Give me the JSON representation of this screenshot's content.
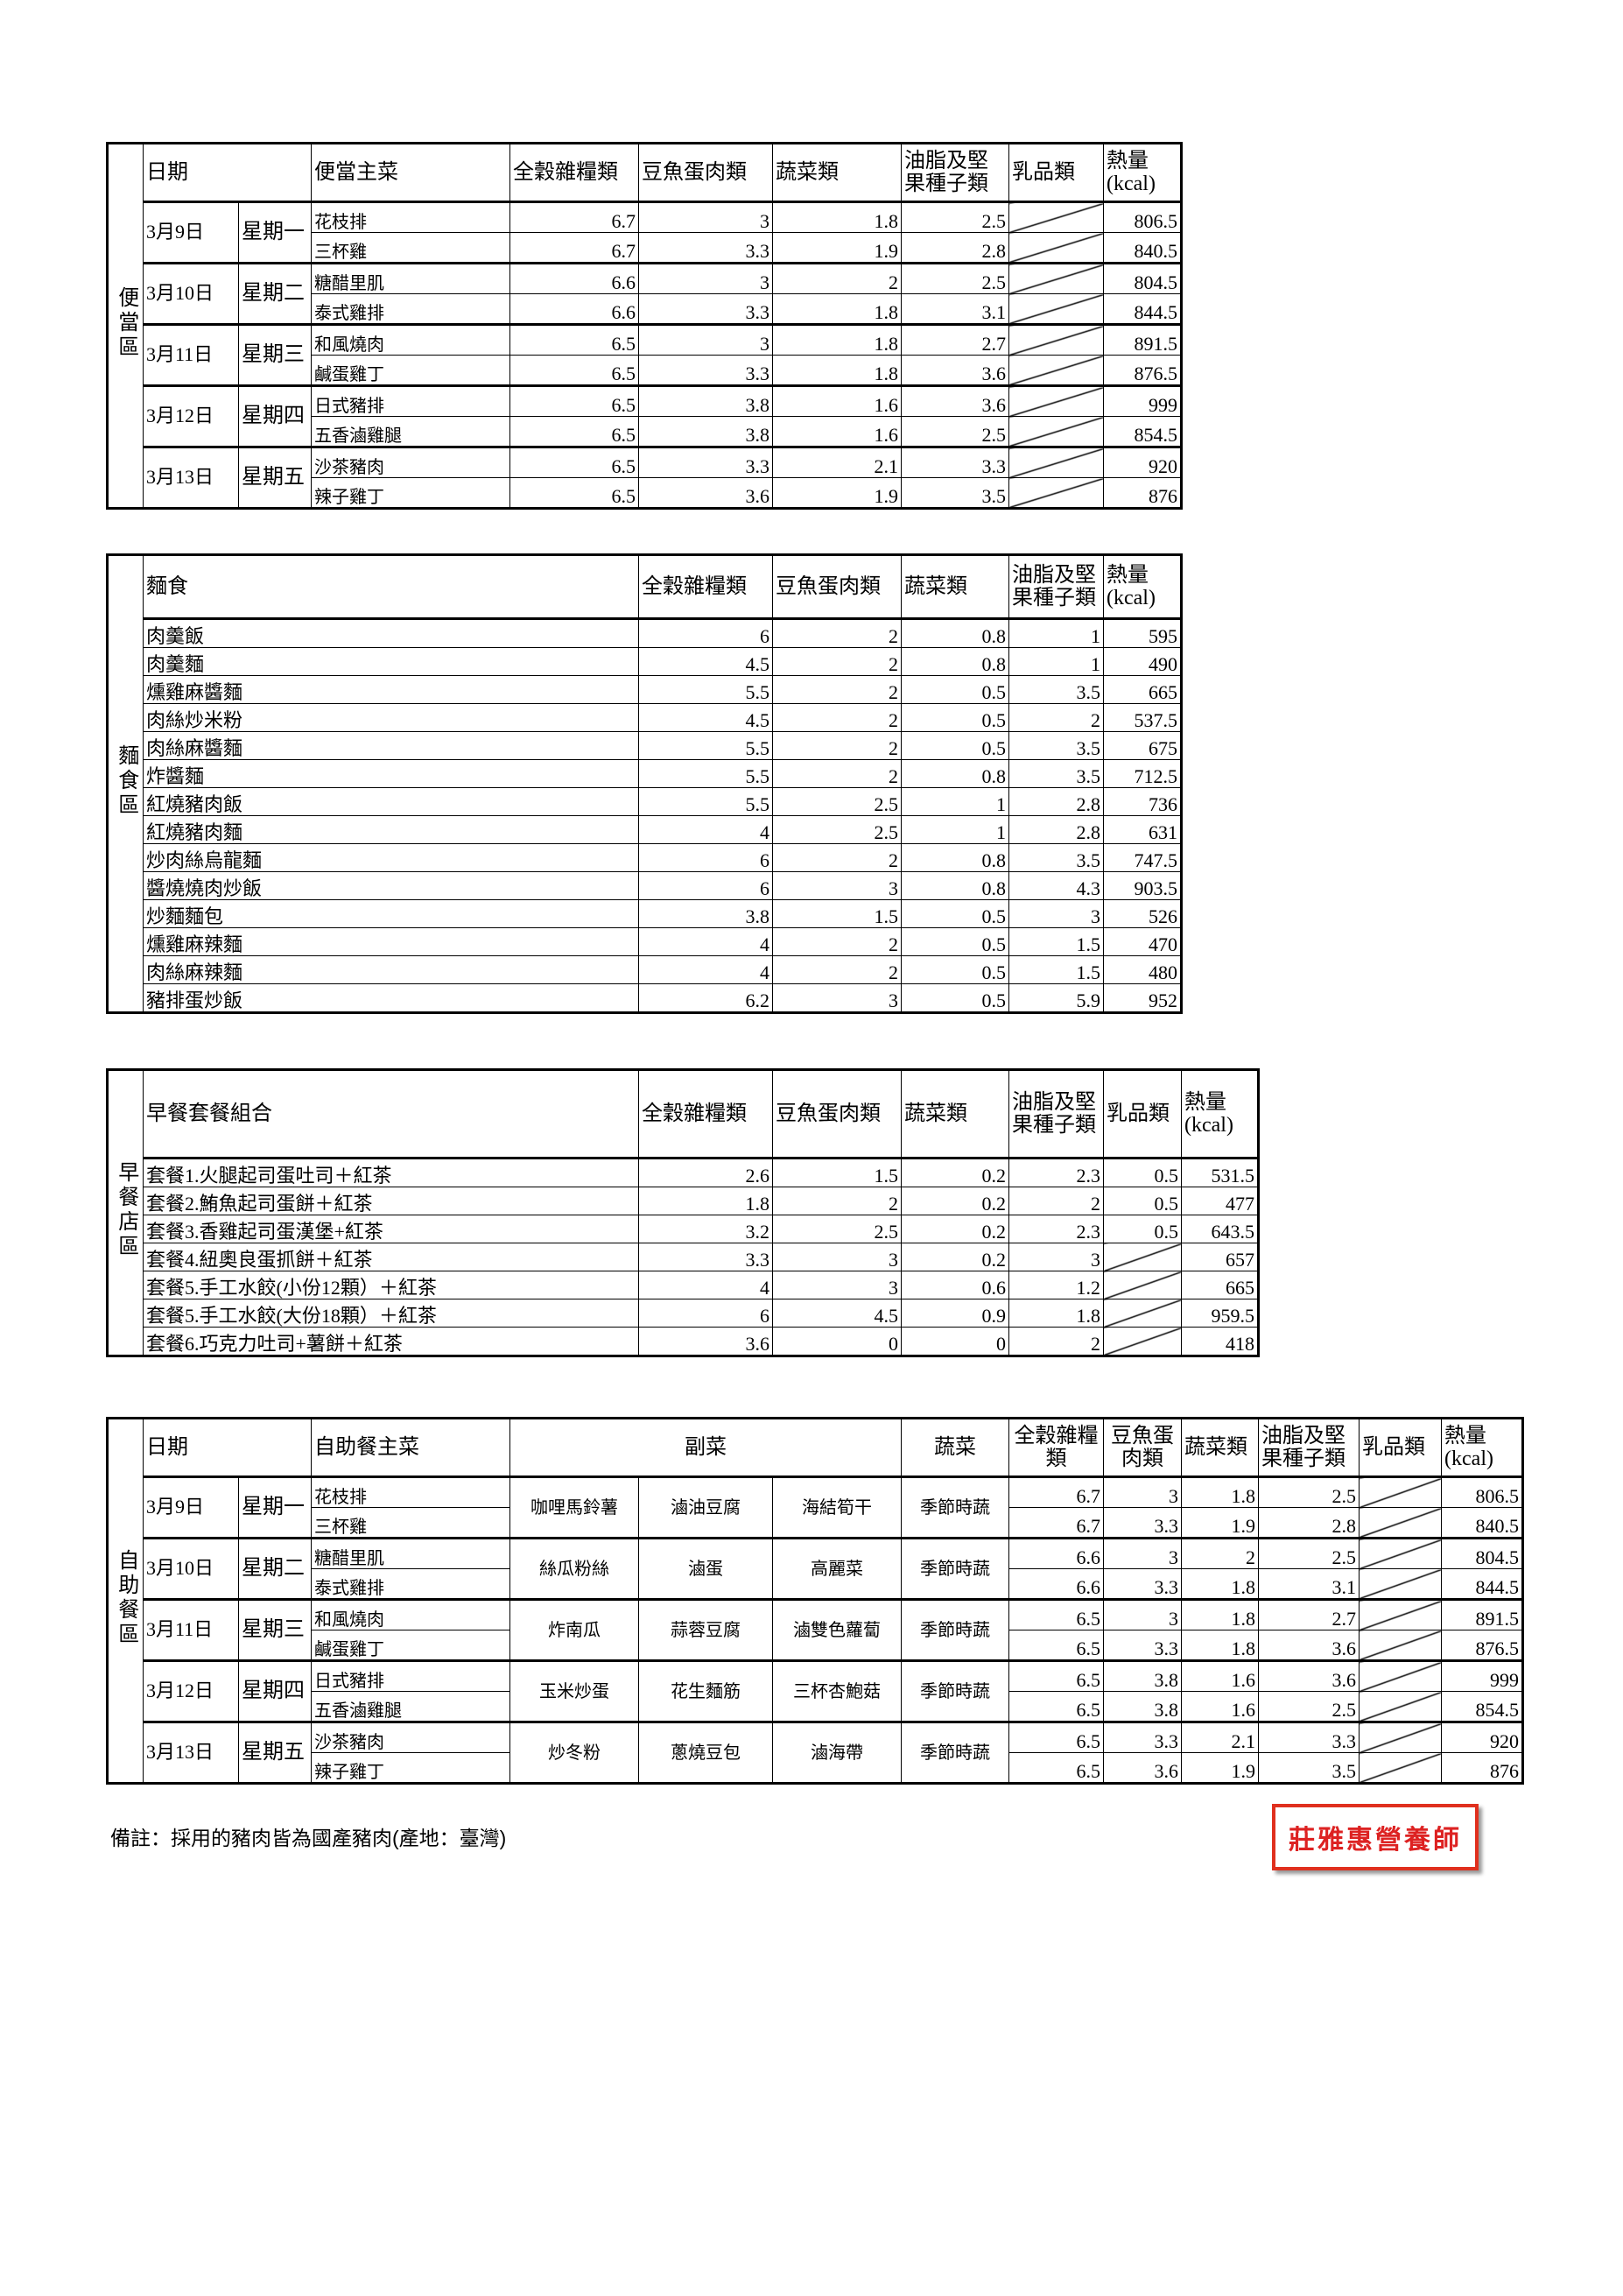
{
  "bento": {
    "section_label": "便當區",
    "headers": {
      "date": "日期",
      "main": "便當主菜",
      "grains": "全穀雜糧類",
      "protein": "豆魚蛋肉類",
      "veg": "蔬菜類",
      "oil": "油脂及堅果種子類",
      "dairy": "乳品類",
      "kcal": "熱量(kcal)"
    },
    "days": [
      {
        "date": "3月9日",
        "weekday": "星期一",
        "items": [
          [
            "花枝排",
            "6.7",
            "3",
            "1.8",
            "2.5",
            null,
            "806.5"
          ],
          [
            "三杯雞",
            "6.7",
            "3.3",
            "1.9",
            "2.8",
            null,
            "840.5"
          ]
        ]
      },
      {
        "date": "3月10日",
        "weekday": "星期二",
        "items": [
          [
            "糖醋里肌",
            "6.6",
            "3",
            "2",
            "2.5",
            null,
            "804.5"
          ],
          [
            "泰式雞排",
            "6.6",
            "3.3",
            "1.8",
            "3.1",
            null,
            "844.5"
          ]
        ]
      },
      {
        "date": "3月11日",
        "weekday": "星期三",
        "items": [
          [
            "和風燒肉",
            "6.5",
            "3",
            "1.8",
            "2.7",
            null,
            "891.5"
          ],
          [
            "鹹蛋雞丁",
            "6.5",
            "3.3",
            "1.8",
            "3.6",
            null,
            "876.5"
          ]
        ]
      },
      {
        "date": "3月12日",
        "weekday": "星期四",
        "items": [
          [
            "日式豬排",
            "6.5",
            "3.8",
            "1.6",
            "3.6",
            null,
            "999"
          ],
          [
            "五香滷雞腿",
            "6.5",
            "3.8",
            "1.6",
            "2.5",
            null,
            "854.5"
          ]
        ]
      },
      {
        "date": "3月13日",
        "weekday": "星期五",
        "items": [
          [
            "沙茶豬肉",
            "6.5",
            "3.3",
            "2.1",
            "3.3",
            null,
            "920"
          ],
          [
            "辣子雞丁",
            "6.5",
            "3.6",
            "1.9",
            "3.5",
            null,
            "876"
          ]
        ]
      }
    ]
  },
  "noodle": {
    "section_label": "麵食區",
    "headers": {
      "main": "麵食",
      "grains": "全穀雜糧類",
      "protein": "豆魚蛋肉類",
      "veg": "蔬菜類",
      "oil": "油脂及堅果種子類",
      "kcal": "熱量(kcal)"
    },
    "rows": [
      [
        "肉羹飯",
        "6",
        "2",
        "0.8",
        "1",
        "595"
      ],
      [
        "肉羹麵",
        "4.5",
        "2",
        "0.8",
        "1",
        "490"
      ],
      [
        "燻雞麻醬麵",
        "5.5",
        "2",
        "0.5",
        "3.5",
        "665"
      ],
      [
        "肉絲炒米粉",
        "4.5",
        "2",
        "0.5",
        "2",
        "537.5"
      ],
      [
        "肉絲麻醬麵",
        "5.5",
        "2",
        "0.5",
        "3.5",
        "675"
      ],
      [
        "炸醬麵",
        "5.5",
        "2",
        "0.8",
        "3.5",
        "712.5"
      ],
      [
        "紅燒豬肉飯",
        "5.5",
        "2.5",
        "1",
        "2.8",
        "736"
      ],
      [
        "紅燒豬肉麵",
        "4",
        "2.5",
        "1",
        "2.8",
        "631"
      ],
      [
        "炒肉絲烏龍麵",
        "6",
        "2",
        "0.8",
        "3.5",
        "747.5"
      ],
      [
        "醬燒燒肉炒飯",
        "6",
        "3",
        "0.8",
        "4.3",
        "903.5"
      ],
      [
        "炒麵麵包",
        "3.8",
        "1.5",
        "0.5",
        "3",
        "526"
      ],
      [
        "燻雞麻辣麵",
        "4",
        "2",
        "0.5",
        "1.5",
        "470"
      ],
      [
        "肉絲麻辣麵",
        "4",
        "2",
        "0.5",
        "1.5",
        "480"
      ],
      [
        "豬排蛋炒飯",
        "6.2",
        "3",
        "0.5",
        "5.9",
        "952"
      ]
    ]
  },
  "breakfast": {
    "section_label": "早餐店區",
    "headers": {
      "main": "早餐套餐組合",
      "grains": "全穀雜糧類",
      "protein": "豆魚蛋肉類",
      "veg": "蔬菜類",
      "oil": "油脂及堅果種子類",
      "dairy": "乳品類",
      "kcal": "熱量(kcal)"
    },
    "rows": [
      [
        "套餐1.火腿起司蛋吐司＋紅茶",
        "2.6",
        "1.5",
        "0.2",
        "2.3",
        "0.5",
        "531.5"
      ],
      [
        "套餐2.鮪魚起司蛋餅＋紅茶",
        "1.8",
        "2",
        "0.2",
        "2",
        "0.5",
        "477"
      ],
      [
        "套餐3.香雞起司蛋漢堡+紅茶",
        "3.2",
        "2.5",
        "0.2",
        "2.3",
        "0.5",
        "643.5"
      ],
      [
        "套餐4.紐奧良蛋抓餅＋紅茶",
        "3.3",
        "3",
        "0.2",
        "3",
        null,
        "657"
      ],
      [
        "套餐5.手工水餃(小份12顆）＋紅茶",
        "4",
        "3",
        "0.6",
        "1.2",
        null,
        "665"
      ],
      [
        "套餐5.手工水餃(大份18顆）＋紅茶",
        "6",
        "4.5",
        "0.9",
        "1.8",
        null,
        "959.5"
      ],
      [
        "套餐6.巧克力吐司+薯餅＋紅茶",
        "3.6",
        "0",
        "0",
        "2",
        null,
        "418"
      ]
    ]
  },
  "buffet": {
    "section_label": "自助餐區",
    "headers": {
      "date": "日期",
      "main": "自助餐主菜",
      "sides": "副菜",
      "vegdish": "蔬菜",
      "grains": "全穀雜糧類",
      "protein": "豆魚蛋肉類",
      "veg": "蔬菜類",
      "oil": "油脂及堅果種子類",
      "dairy": "乳品類",
      "kcal": "熱量(kcal)"
    },
    "days": [
      {
        "date": "3月9日",
        "weekday": "星期一",
        "sides": [
          "咖哩馬鈴薯",
          "滷油豆腐",
          "海結筍干"
        ],
        "vegdish": "季節時蔬",
        "items": [
          [
            "花枝排",
            "6.7",
            "3",
            "1.8",
            "2.5",
            null,
            "806.5"
          ],
          [
            "三杯雞",
            "6.7",
            "3.3",
            "1.9",
            "2.8",
            null,
            "840.5"
          ]
        ]
      },
      {
        "date": "3月10日",
        "weekday": "星期二",
        "sides": [
          "絲瓜粉絲",
          "滷蛋",
          "高麗菜"
        ],
        "vegdish": "季節時蔬",
        "items": [
          [
            "糖醋里肌",
            "6.6",
            "3",
            "2",
            "2.5",
            null,
            "804.5"
          ],
          [
            "泰式雞排",
            "6.6",
            "3.3",
            "1.8",
            "3.1",
            null,
            "844.5"
          ]
        ]
      },
      {
        "date": "3月11日",
        "weekday": "星期三",
        "sides": [
          "炸南瓜",
          "蒜蓉豆腐",
          "滷雙色蘿蔔"
        ],
        "vegdish": "季節時蔬",
        "items": [
          [
            "和風燒肉",
            "6.5",
            "3",
            "1.8",
            "2.7",
            null,
            "891.5"
          ],
          [
            "鹹蛋雞丁",
            "6.5",
            "3.3",
            "1.8",
            "3.6",
            null,
            "876.5"
          ]
        ]
      },
      {
        "date": "3月12日",
        "weekday": "星期四",
        "sides": [
          "玉米炒蛋",
          "花生麵筋",
          "三杯杏鮑菇"
        ],
        "vegdish": "季節時蔬",
        "items": [
          [
            "日式豬排",
            "6.5",
            "3.8",
            "1.6",
            "3.6",
            null,
            "999"
          ],
          [
            "五香滷雞腿",
            "6.5",
            "3.8",
            "1.6",
            "2.5",
            null,
            "854.5"
          ]
        ]
      },
      {
        "date": "3月13日",
        "weekday": "星期五",
        "sides": [
          "炒冬粉",
          "蔥燒豆包",
          "滷海帶"
        ],
        "vegdish": "季節時蔬",
        "items": [
          [
            "沙茶豬肉",
            "6.5",
            "3.3",
            "2.1",
            "3.3",
            null,
            "920"
          ],
          [
            "辣子雞丁",
            "6.5",
            "3.6",
            "1.9",
            "3.5",
            null,
            "876"
          ]
        ]
      }
    ]
  },
  "footer": {
    "note": "備註：採用的豬肉皆為國產豬肉(產地：臺灣)",
    "stamp": "莊雅惠營養師"
  }
}
